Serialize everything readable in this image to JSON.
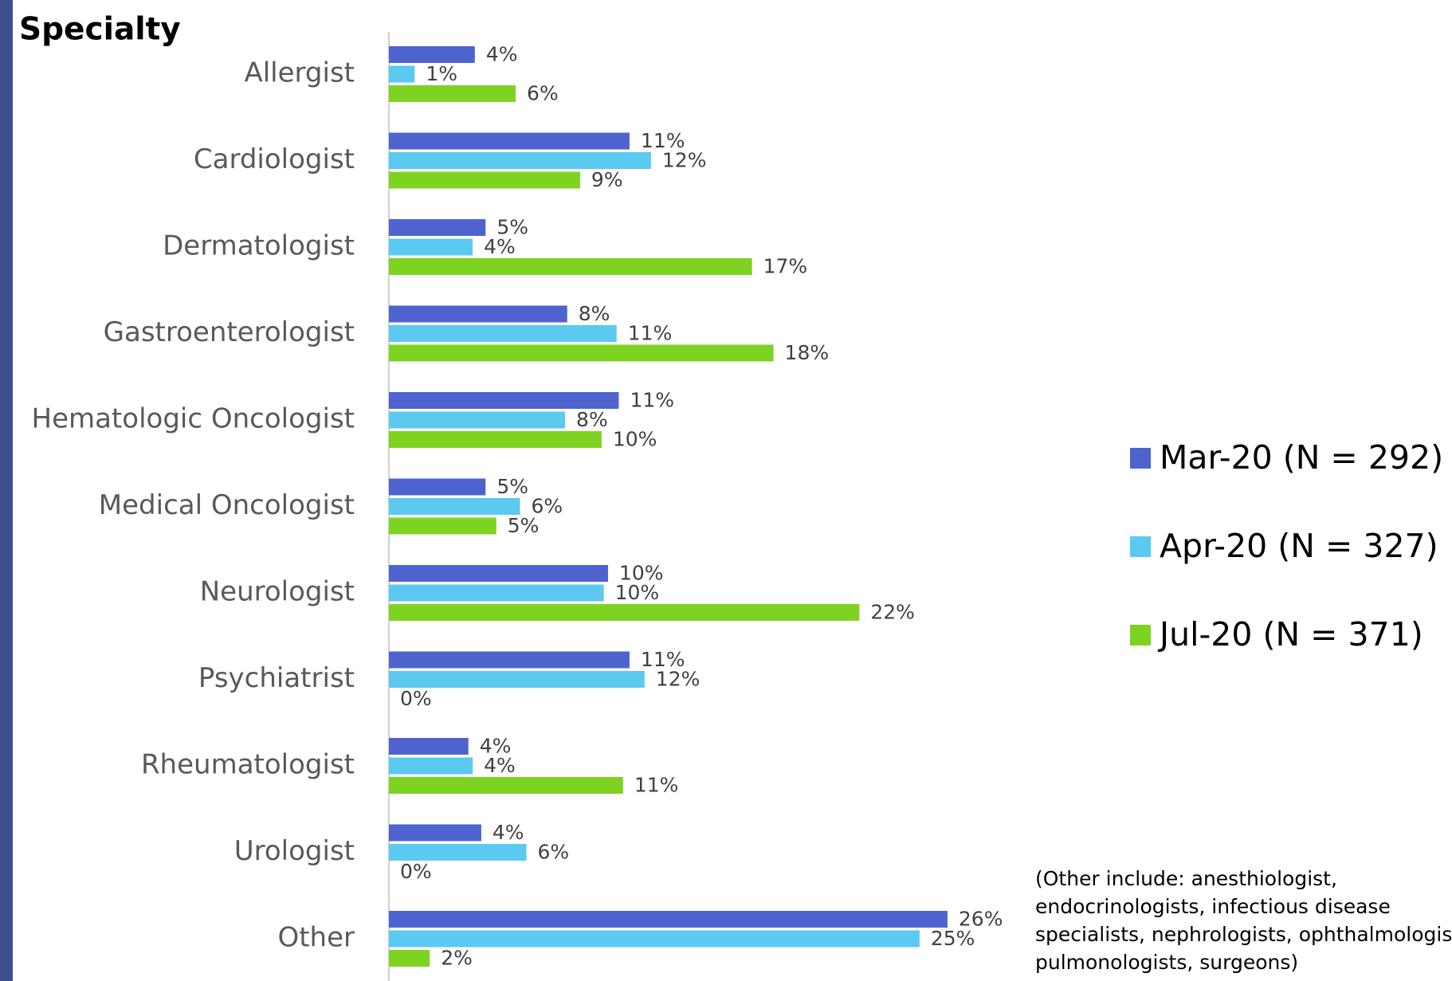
{
  "chart_data": {
    "type": "hbar",
    "title": "Specialty",
    "categories": [
      "Allergist",
      "Cardiologist",
      "Dermatologist",
      "Gastroenterologist",
      "Hematologic Oncologist",
      "Medical Oncologist",
      "Neurologist",
      "Psychiatrist",
      "Rheumatologist",
      "Urologist",
      "Other"
    ],
    "series": [
      {
        "name": "Mar-20 (N = 292)",
        "color": "#4f63cf",
        "values": [
          4.0,
          11.2,
          4.5,
          8.3,
          10.7,
          4.5,
          10.2,
          11.2,
          3.7,
          4.3,
          26.0
        ],
        "value_labels": [
          "4%",
          "11%",
          "5%",
          "8%",
          "11%",
          "5%",
          "10%",
          "11%",
          "4%",
          "4%",
          "26%"
        ]
      },
      {
        "name": "Apr-20 (N = 327)",
        "color": "#5bc9f0",
        "values": [
          1.2,
          12.2,
          3.9,
          10.6,
          8.2,
          6.1,
          10.0,
          11.9,
          3.9,
          6.4,
          24.7
        ],
        "value_labels": [
          "1%",
          "12%",
          "4%",
          "11%",
          "8%",
          "6%",
          "10%",
          "12%",
          "4%",
          "6%",
          "25%"
        ]
      },
      {
        "name": "Jul-20 (N = 371)",
        "color": "#7ed321",
        "values": [
          5.9,
          8.9,
          16.9,
          17.9,
          9.9,
          5.0,
          21.9,
          0,
          10.9,
          0,
          1.9
        ],
        "value_labels": [
          "6%",
          "9%",
          "17%",
          "18%",
          "10%",
          "5%",
          "22%",
          "0%",
          "11%",
          "0%",
          "2%"
        ]
      }
    ],
    "xlim": [
      0,
      48
    ],
    "note": [
      "(Other include: anesthiologist,",
      "endocrinologists, infectious disease",
      "specialists, nephrologists, ophthalmologists,",
      "pulmonologists, surgeons)"
    ]
  }
}
